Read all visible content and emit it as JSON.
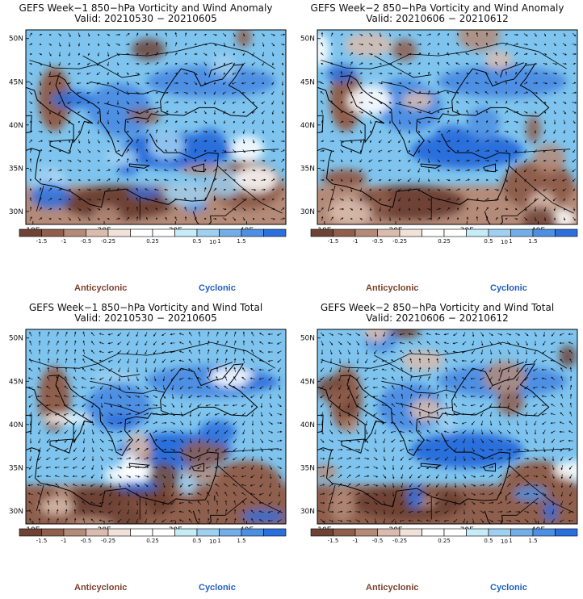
{
  "panels": [
    {
      "title": "GEFS Week−1 850−hPa Vorticity and Wind Anomaly",
      "valid": "Valid: 20210530 − 20210605",
      "seed": 11
    },
    {
      "title": "GEFS Week−2 850−hPa Vorticity and Wind Anomaly",
      "valid": "Valid: 20210606 − 20210612",
      "seed": 23
    },
    {
      "title": "GEFS Week−1 850−hPa Vorticity and Wind Total",
      "valid": "Valid: 20210530 − 20210605",
      "seed": 37
    },
    {
      "title": "GEFS Week−2 850−hPa Vorticity and Wind Total",
      "valid": "Valid: 20210606 − 20210612",
      "seed": 53
    }
  ],
  "map": {
    "lat_labels": [
      "50N",
      "45N",
      "40N",
      "35N",
      "30N"
    ],
    "lon_labels": [
      "10E",
      "20E",
      "30E",
      "40E"
    ],
    "lat_range": [
      28.5,
      51
    ],
    "lon_range": [
      9,
      45.5
    ]
  },
  "colorbar": {
    "labels": [
      "-1.5",
      "-1",
      "-0.5",
      "-0.25",
      "0.25",
      "0.5",
      "1",
      "1.5"
    ],
    "extra_label": "10",
    "colors": [
      "#6e4335",
      "#8f5e4d",
      "#b48a78",
      "#d9bcae",
      "#f0e2d9",
      "#ffffff",
      "#ffffff",
      "#c5ecf7",
      "#9fd0f1",
      "#74aee8",
      "#4d8fe3",
      "#2b6fdc"
    ]
  },
  "legend": {
    "anticyclonic": "Anticyclonic",
    "cyclonic": "Cyclonic"
  },
  "colors": {
    "anticyclonic": "#7b3f2c",
    "cyclonic": "#1f5fbf"
  }
}
